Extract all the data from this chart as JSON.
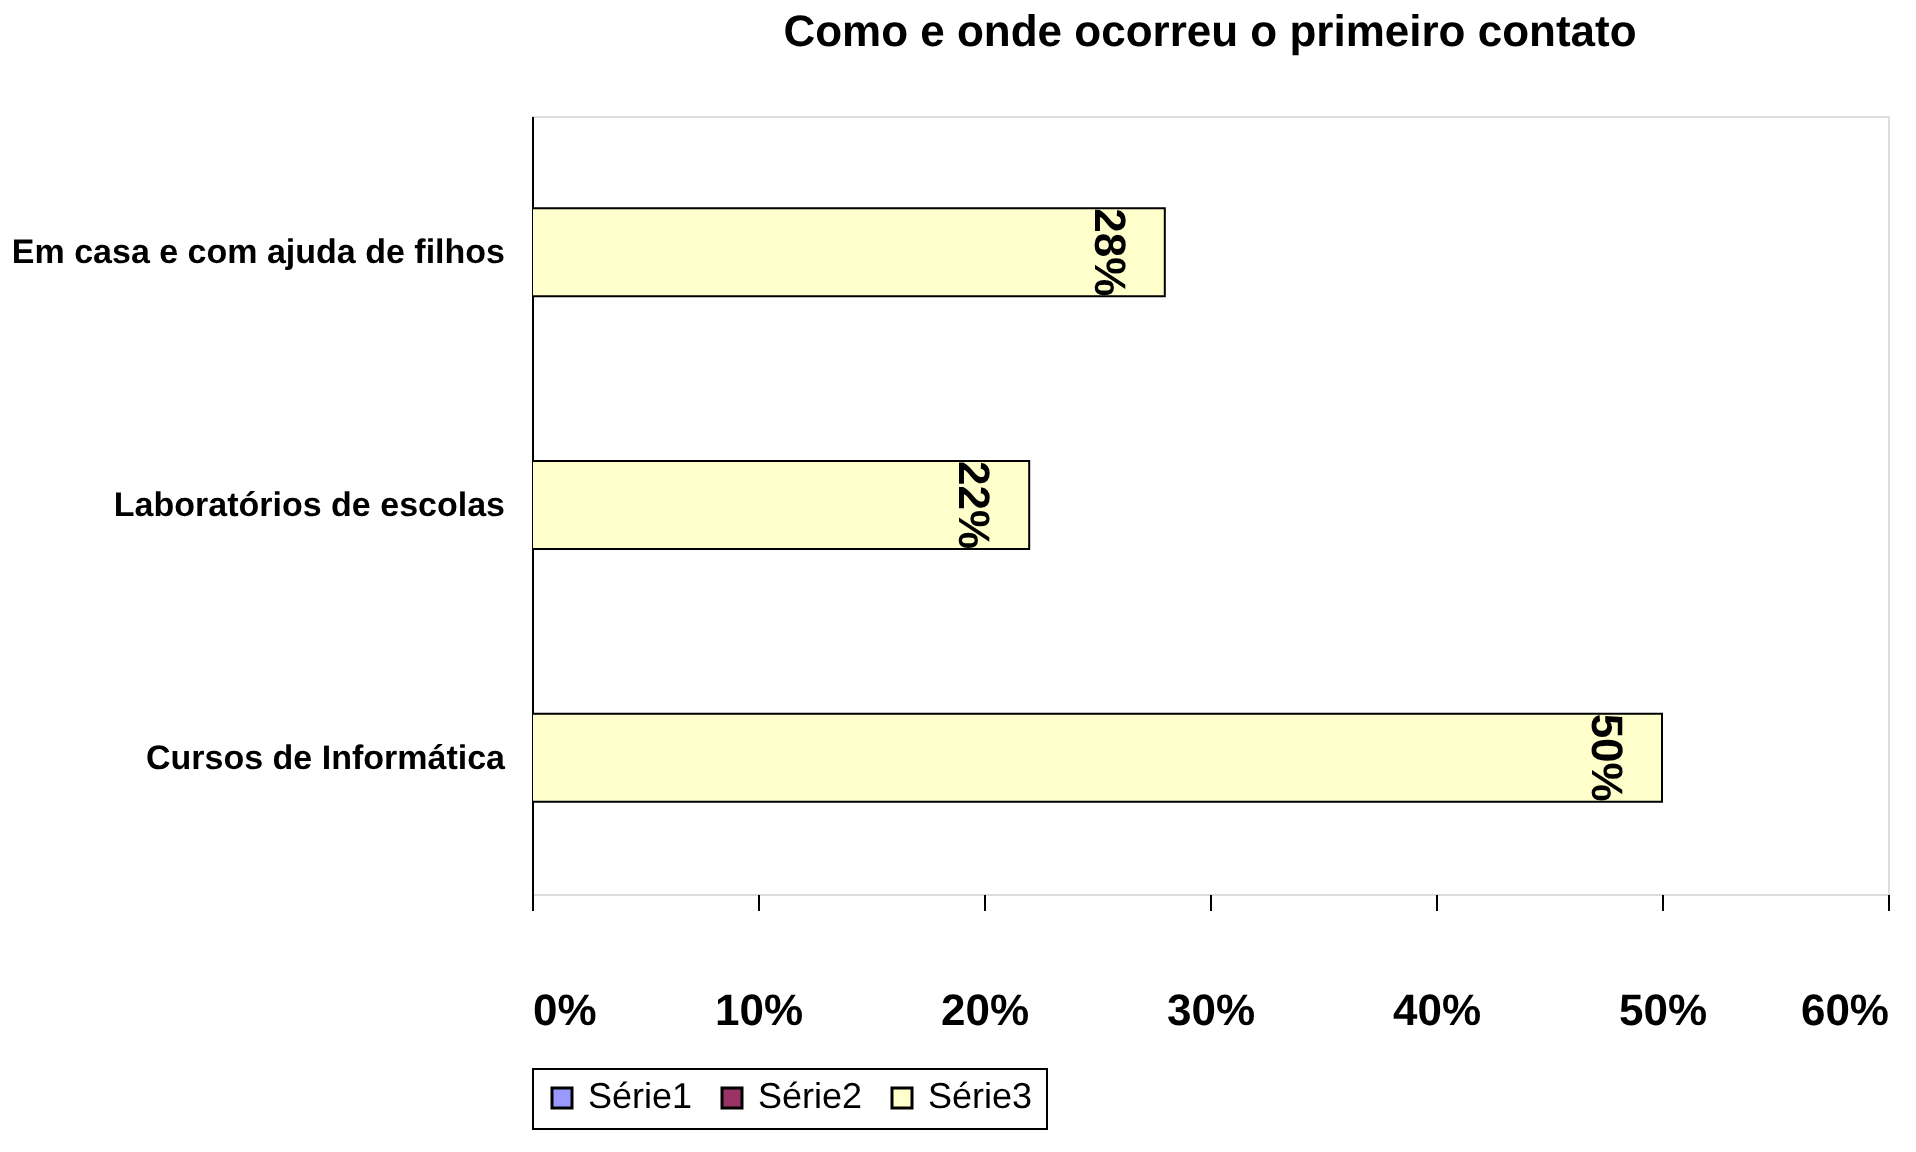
{
  "chart_data": {
    "type": "bar",
    "orientation": "horizontal",
    "title": "Como e onde ocorreu o primeiro contato",
    "categories": [
      "Em casa e com ajuda de filhos",
      "Laboratórios de escolas",
      "Cursos de Informática"
    ],
    "series": [
      {
        "name": "Série1",
        "color": "#9999ff",
        "values": [
          null,
          null,
          null
        ]
      },
      {
        "name": "Série2",
        "color": "#993366",
        "values": [
          null,
          null,
          null
        ]
      },
      {
        "name": "Série3",
        "color": "#ffffcc",
        "values": [
          28,
          22,
          50
        ],
        "value_labels": [
          "28%",
          "22%",
          "50%"
        ]
      }
    ],
    "xlim": [
      0,
      60
    ],
    "xticks": [
      {
        "value": 0,
        "label": "0%"
      },
      {
        "value": 10,
        "label": "10%"
      },
      {
        "value": 20,
        "label": "20%"
      },
      {
        "value": 30,
        "label": "30%"
      },
      {
        "value": 40,
        "label": "40%"
      },
      {
        "value": 50,
        "label": "50%"
      },
      {
        "value": 60,
        "label": "60%"
      }
    ],
    "grid": false,
    "legend": "bottom"
  }
}
